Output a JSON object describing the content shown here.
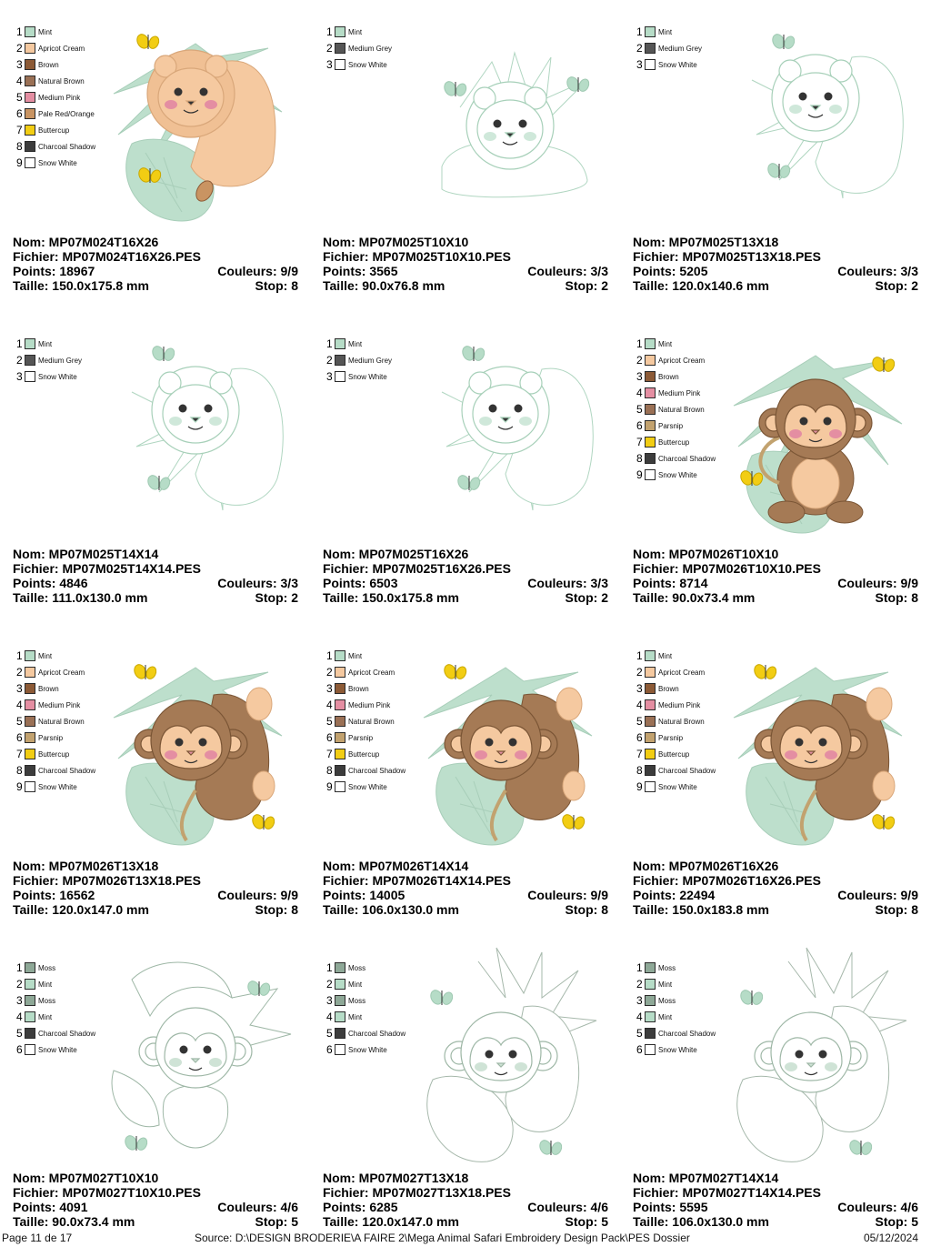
{
  "colors": {
    "Mint": "#b6dcc7",
    "Apricot Cream": "#f5c9a0",
    "Brown": "#8c5a36",
    "Natural Brown": "#9a7055",
    "Medium Pink": "#e48ea2",
    "Pale Red/Orange": "#c99462",
    "Buttercup": "#f2cd13",
    "Charcoal Shadow": "#3c3c3c",
    "Snow White": "#ffffff",
    "Medium Grey": "#555555",
    "Parsnip": "#c2a26f",
    "Moss": "#8ea897"
  },
  "designs": [
    {
      "art": "lion-color",
      "colors": [
        "Mint",
        "Apricot Cream",
        "Brown",
        "Natural Brown",
        "Medium Pink",
        "Pale Red/Orange",
        "Buttercup",
        "Charcoal Shadow",
        "Snow White"
      ],
      "nom": "Nom: MP07M024T16X26",
      "fichier": "Fichier: MP07M024T16X26.PES",
      "points": "Points: 18967",
      "couleurs": "Couleurs: 9/9",
      "taille": "Taille: 150.0x175.8 mm",
      "stop": "Stop: 8"
    },
    {
      "art": "lion-lying-outline",
      "colors": [
        "Mint",
        "Medium Grey",
        "Snow White"
      ],
      "nom": "Nom: MP07M025T10X10",
      "fichier": "Fichier: MP07M025T10X10.PES",
      "points": "Points: 3565",
      "couleurs": "Couleurs: 3/3",
      "taille": "Taille: 90.0x76.8 mm",
      "stop": "Stop: 2"
    },
    {
      "art": "lion-outline",
      "colors": [
        "Mint",
        "Medium Grey",
        "Snow White"
      ],
      "nom": "Nom: MP07M025T13X18",
      "fichier": "Fichier: MP07M025T13X18.PES",
      "points": "Points: 5205",
      "couleurs": "Couleurs: 3/3",
      "taille": "Taille: 120.0x140.6 mm",
      "stop": "Stop: 2"
    },
    {
      "art": "lion-outline",
      "colors": [
        "Mint",
        "Medium Grey",
        "Snow White"
      ],
      "nom": "Nom: MP07M025T14X14",
      "fichier": "Fichier: MP07M025T14X14.PES",
      "points": "Points: 4846",
      "couleurs": "Couleurs: 3/3",
      "taille": "Taille: 111.0x130.0 mm",
      "stop": "Stop: 2"
    },
    {
      "art": "lion-outline",
      "colors": [
        "Mint",
        "Medium Grey",
        "Snow White"
      ],
      "nom": "Nom: MP07M025T16X26",
      "fichier": "Fichier: MP07M025T16X26.PES",
      "points": "Points: 6503",
      "couleurs": "Couleurs: 3/3",
      "taille": "Taille: 150.0x175.8 mm",
      "stop": "Stop: 2"
    },
    {
      "art": "monkey-sit-color",
      "colors": [
        "Mint",
        "Apricot Cream",
        "Brown",
        "Medium Pink",
        "Natural Brown",
        "Parsnip",
        "Buttercup",
        "Charcoal Shadow",
        "Snow White"
      ],
      "nom": "Nom: MP07M026T10X10",
      "fichier": "Fichier: MP07M026T10X10.PES",
      "points": "Points: 8714",
      "couleurs": "Couleurs: 9/9",
      "taille": "Taille: 90.0x73.4 mm",
      "stop": "Stop: 8"
    },
    {
      "art": "monkey-color",
      "colors": [
        "Mint",
        "Apricot Cream",
        "Brown",
        "Medium Pink",
        "Natural Brown",
        "Parsnip",
        "Buttercup",
        "Charcoal Shadow",
        "Snow White"
      ],
      "nom": "Nom: MP07M026T13X18",
      "fichier": "Fichier: MP07M026T13X18.PES",
      "points": "Points: 16562",
      "couleurs": "Couleurs: 9/9",
      "taille": "Taille: 120.0x147.0 mm",
      "stop": "Stop: 8"
    },
    {
      "art": "monkey-color",
      "colors": [
        "Mint",
        "Apricot Cream",
        "Brown",
        "Medium Pink",
        "Natural Brown",
        "Parsnip",
        "Buttercup",
        "Charcoal Shadow",
        "Snow White"
      ],
      "nom": "Nom: MP07M026T14X14",
      "fichier": "Fichier: MP07M026T14X14.PES",
      "points": "Points: 14005",
      "couleurs": "Couleurs: 9/9",
      "taille": "Taille: 106.0x130.0 mm",
      "stop": "Stop: 8"
    },
    {
      "art": "monkey-color",
      "colors": [
        "Mint",
        "Apricot Cream",
        "Brown",
        "Medium Pink",
        "Natural Brown",
        "Parsnip",
        "Buttercup",
        "Charcoal Shadow",
        "Snow White"
      ],
      "nom": "Nom: MP07M026T16X26",
      "fichier": "Fichier: MP07M026T16X26.PES",
      "points": "Points: 22494",
      "couleurs": "Couleurs: 9/9",
      "taille": "Taille: 150.0x183.8 mm",
      "stop": "Stop: 8"
    },
    {
      "art": "monkey-sit-outline",
      "colors": [
        "Moss",
        "Mint",
        "Moss",
        "Mint",
        "Charcoal Shadow",
        "Snow White"
      ],
      "nom": "Nom: MP07M027T10X10",
      "fichier": "Fichier: MP07M027T10X10.PES",
      "points": "Points: 4091",
      "couleurs": "Couleurs: 4/6",
      "taille": "Taille: 90.0x73.4 mm",
      "stop": "Stop: 5"
    },
    {
      "art": "monkey-outline",
      "colors": [
        "Moss",
        "Mint",
        "Moss",
        "Mint",
        "Charcoal Shadow",
        "Snow White"
      ],
      "nom": "Nom: MP07M027T13X18",
      "fichier": "Fichier: MP07M027T13X18.PES",
      "points": "Points: 6285",
      "couleurs": "Couleurs: 4/6",
      "taille": "Taille: 120.0x147.0 mm",
      "stop": "Stop: 5"
    },
    {
      "art": "monkey-outline",
      "colors": [
        "Moss",
        "Mint",
        "Moss",
        "Mint",
        "Charcoal Shadow",
        "Snow White"
      ],
      "nom": "Nom: MP07M027T14X14",
      "fichier": "Fichier: MP07M027T14X14.PES",
      "points": "Points: 5595",
      "couleurs": "Couleurs: 4/6",
      "taille": "Taille: 106.0x130.0 mm",
      "stop": "Stop: 5"
    }
  ],
  "footer": {
    "page": "Page 11 de 17",
    "source": "Source: D:\\DESIGN BRODERIE\\A FAIRE 2\\Mega Animal Safari Embroidery Design Pack\\PES Dossier",
    "date": "05/12/2024"
  }
}
